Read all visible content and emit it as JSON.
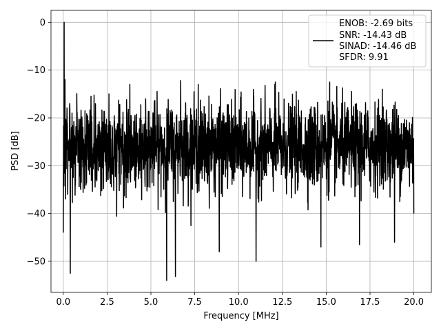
{
  "chart_data": {
    "type": "line",
    "xlabel": "Frequency [MHz]",
    "ylabel": "PSD [dB]",
    "xlim": [
      -0.7,
      21.0
    ],
    "ylim": [
      -56.5,
      2.5
    ],
    "x_ticks": [
      0.0,
      2.5,
      5.0,
      7.5,
      10.0,
      12.5,
      15.0,
      17.5,
      20.0
    ],
    "x_tick_labels": [
      "0.0",
      "2.5",
      "5.0",
      "7.5",
      "10.0",
      "12.5",
      "15.0",
      "17.5",
      "20.0"
    ],
    "y_ticks": [
      0,
      -10,
      -20,
      -30,
      -40,
      -50
    ],
    "y_tick_labels": [
      "0",
      "−10",
      "−20",
      "−30",
      "−40",
      "−50"
    ],
    "grid": true,
    "legend_placement": "upper right",
    "line_color": "#000000",
    "series": [
      {
        "legend_lines": [
          "ENOB: -2.69 bits",
          "SNR: -14.43 dB",
          "SINAD: -14.46 dB",
          "SFDR: 9.91"
        ],
        "peak": {
          "x": 0.05,
          "y": 0.0
        },
        "noise_floor": {
          "x_range": [
            0.0,
            20.0
          ],
          "y_band": [
            -34.0,
            -18.0
          ],
          "mean": -26.0
        },
        "notable_points": [
          {
            "x": 0.0,
            "y": -44.0
          },
          {
            "x": 0.1,
            "y": -12.0
          },
          {
            "x": 0.4,
            "y": -52.5
          },
          {
            "x": 0.5,
            "y": -19.0
          },
          {
            "x": 4.7,
            "y": -16.0
          },
          {
            "x": 5.9,
            "y": -54.0
          },
          {
            "x": 6.4,
            "y": -53.2
          },
          {
            "x": 6.7,
            "y": -12.2
          },
          {
            "x": 7.7,
            "y": -13.0
          },
          {
            "x": 8.9,
            "y": -48.0
          },
          {
            "x": 11.0,
            "y": -50.0
          },
          {
            "x": 12.1,
            "y": -12.5
          },
          {
            "x": 14.7,
            "y": -47.0
          },
          {
            "x": 15.2,
            "y": -12.5
          },
          {
            "x": 16.9,
            "y": -46.5
          },
          {
            "x": 18.2,
            "y": -14.0
          },
          {
            "x": 18.9,
            "y": -46.0
          },
          {
            "x": 20.0,
            "y": -40.0
          }
        ]
      }
    ]
  }
}
